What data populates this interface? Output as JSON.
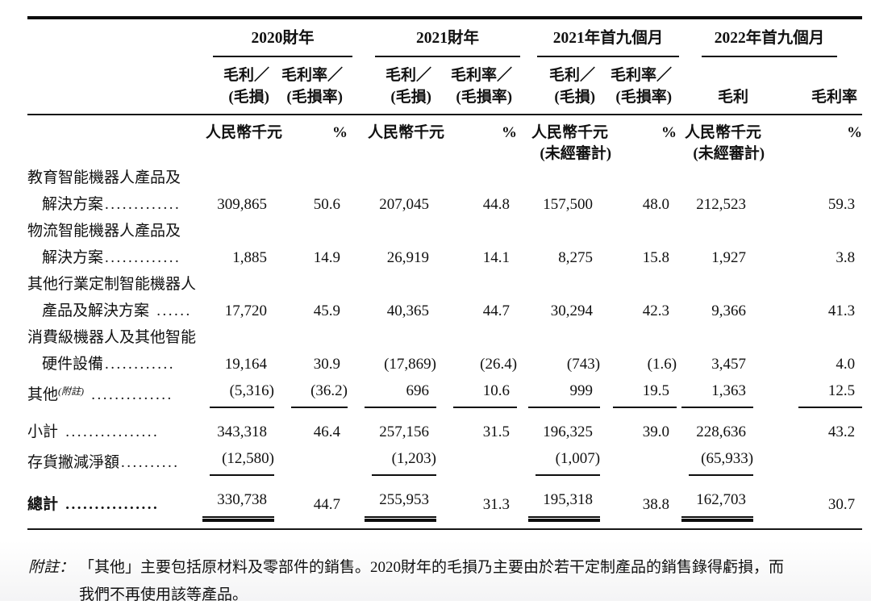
{
  "table": {
    "groups": [
      {
        "title": "2020財年",
        "amount_header_line1": "毛利／",
        "amount_header_line2": "(毛損)",
        "pct_header_line1": "毛利率／",
        "pct_header_line2": "(毛損率)",
        "amount_unit": "人民幣千元",
        "amount_unit_note": "",
        "pct_unit": "%"
      },
      {
        "title": "2021財年",
        "amount_header_line1": "毛利／",
        "amount_header_line2": "(毛損)",
        "pct_header_line1": "毛利率／",
        "pct_header_line2": "(毛損率)",
        "amount_unit": "人民幣千元",
        "amount_unit_note": "",
        "pct_unit": "%"
      },
      {
        "title": "2021年首九個月",
        "amount_header_line1": "毛利／",
        "amount_header_line2": "(毛損)",
        "pct_header_line1": "毛利率／",
        "pct_header_line2": "(毛損率)",
        "amount_unit": "人民幣千元",
        "amount_unit_note": "(未經審計)",
        "pct_unit": "%"
      },
      {
        "title": "2022年首九個月",
        "amount_header_line1": "",
        "amount_header_line2": "毛利",
        "pct_header_line1": "",
        "pct_header_line2": "毛利率",
        "amount_unit": "人民幣千元",
        "amount_unit_note": "(未經審計)",
        "pct_unit": "%"
      }
    ],
    "rows": [
      {
        "type": "label",
        "label": "教育智能機器人產品及"
      },
      {
        "type": "data",
        "indent": true,
        "label": "解決方案",
        "leader": ".............",
        "values": [
          "309,865",
          "50.6",
          "207,045",
          "44.8",
          "157,500",
          "48.0",
          "212,523",
          "59.3"
        ]
      },
      {
        "type": "label",
        "label": "物流智能機器人產品及"
      },
      {
        "type": "data",
        "indent": true,
        "label": "解決方案",
        "leader": ".............",
        "values": [
          "1,885",
          "14.9",
          "26,919",
          "14.1",
          "8,275",
          "15.8",
          "1,927",
          "3.8"
        ]
      },
      {
        "type": "label",
        "label": "其他行業定制智能機器人"
      },
      {
        "type": "data",
        "indent": true,
        "label": "產品及解決方案",
        "leader": " ......",
        "values": [
          "17,720",
          "45.9",
          "40,365",
          "44.7",
          "30,294",
          "42.3",
          "9,366",
          "41.3"
        ]
      },
      {
        "type": "label",
        "label": "消費級機器人及其他智能"
      },
      {
        "type": "data",
        "indent": true,
        "label": "硬件設備",
        "leader": "............",
        "values": [
          "19,164",
          "30.9",
          "(17,869)",
          "(26.4)",
          "(743)",
          "(1.6)",
          "3,457",
          "4.0"
        ]
      },
      {
        "type": "data",
        "label": "其他",
        "sup": "(附註)",
        "leader": " ..............",
        "rule_after": "all",
        "values": [
          "(5,316)",
          "(36.2)",
          "696",
          "10.6",
          "999",
          "19.5",
          "1,363",
          "12.5"
        ]
      },
      {
        "type": "data",
        "label": "小計",
        "leader": " ................",
        "gap_above": true,
        "values": [
          "343,318",
          "46.4",
          "257,156",
          "31.5",
          "196,325",
          "39.0",
          "228,636",
          "43.2"
        ]
      },
      {
        "type": "data",
        "label": "存貨撇減淨額",
        "leader": "..........",
        "rule_after": "amounts",
        "values": [
          "(12,580)",
          "",
          "(1,203)",
          "",
          "(1,007)",
          "",
          "(65,933)",
          ""
        ]
      },
      {
        "type": "data",
        "label": "總計",
        "leader": " ................",
        "bold": true,
        "gap_above": true,
        "rule_double": "amounts",
        "values": [
          "330,738",
          "44.7",
          "255,953",
          "31.3",
          "195,318",
          "38.8",
          "162,703",
          "30.7"
        ]
      }
    ]
  },
  "footnote": {
    "label": "附註：",
    "line1": "「其他」主要包括原材料及零部件的銷售。2020財年的毛損乃主要由於若干定制產品的銷售錄得虧損，而",
    "line2": "我們不再使用該等產品。"
  }
}
